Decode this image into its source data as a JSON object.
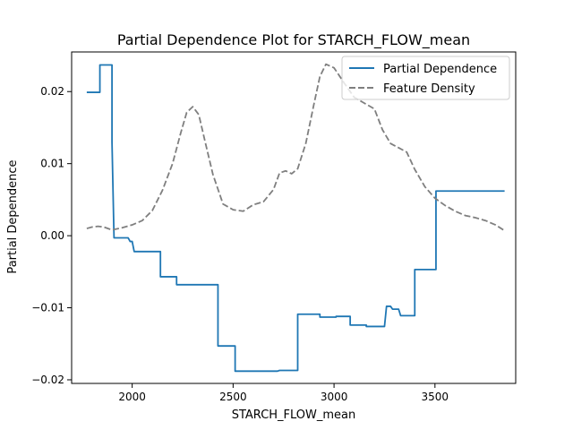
{
  "chart_data": {
    "type": "line",
    "title": "Partial Dependence Plot for STARCH_FLOW_mean",
    "xlabel": "STARCH_FLOW_mean",
    "ylabel": "Partial Dependence",
    "xlim": [
      1700,
      3900
    ],
    "ylim": [
      -0.0205,
      0.0255
    ],
    "xticks": [
      2000,
      2500,
      3000,
      3500
    ],
    "xtick_labels": [
      "2000",
      "2500",
      "3000",
      "3500"
    ],
    "yticks": [
      -0.02,
      -0.01,
      0.0,
      0.01,
      0.02
    ],
    "ytick_labels": [
      "−0.02",
      "−0.01",
      "0.00",
      "0.01",
      "0.02"
    ],
    "grid": false,
    "legend_position": "top-right",
    "series": [
      {
        "name": "Partial Dependence",
        "color": "#1f77b4",
        "style": "solid",
        "x": [
          1775,
          1840,
          1840,
          1900,
          1900,
          1910,
          1910,
          1980,
          1990,
          2000,
          2010,
          2140,
          2140,
          2220,
          2220,
          2425,
          2425,
          2510,
          2510,
          2720,
          2730,
          2820,
          2820,
          2930,
          2930,
          3010,
          3010,
          3080,
          3080,
          3160,
          3160,
          3250,
          3260,
          3280,
          3290,
          3320,
          3330,
          3400,
          3400,
          3505,
          3505,
          3845
        ],
        "y": [
          0.0199,
          0.0199,
          0.0237,
          0.0237,
          0.013,
          -0.0003,
          -0.0003,
          -0.0003,
          -0.0008,
          -0.0008,
          -0.0022,
          -0.0022,
          -0.0057,
          -0.0057,
          -0.0068,
          -0.0068,
          -0.0153,
          -0.0153,
          -0.0188,
          -0.0188,
          -0.0187,
          -0.0187,
          -0.0109,
          -0.0109,
          -0.0113,
          -0.0113,
          -0.0112,
          -0.0112,
          -0.0124,
          -0.0124,
          -0.0126,
          -0.0126,
          -0.0098,
          -0.0098,
          -0.0102,
          -0.0102,
          -0.0111,
          -0.0111,
          -0.0047,
          -0.0047,
          0.0062,
          0.0062
        ]
      },
      {
        "name": "Feature Density",
        "color": "#7f7f7f",
        "style": "dashed",
        "x": [
          1775,
          1800,
          1830,
          1860,
          1900,
          1950,
          2000,
          2050,
          2100,
          2150,
          2200,
          2240,
          2270,
          2300,
          2330,
          2360,
          2400,
          2450,
          2500,
          2550,
          2600,
          2650,
          2700,
          2730,
          2760,
          2790,
          2820,
          2860,
          2900,
          2930,
          2960,
          3000,
          3050,
          3100,
          3150,
          3200,
          3240,
          3280,
          3320,
          3360,
          3400,
          3450,
          3500,
          3550,
          3600,
          3650,
          3700,
          3750,
          3800,
          3845
        ],
        "y": [
          0.001,
          0.0012,
          0.0013,
          0.0012,
          0.0008,
          0.0011,
          0.0015,
          0.0021,
          0.0035,
          0.0063,
          0.01,
          0.0142,
          0.0171,
          0.0179,
          0.0168,
          0.0132,
          0.0085,
          0.0044,
          0.0036,
          0.0034,
          0.0043,
          0.0047,
          0.0064,
          0.0087,
          0.009,
          0.0086,
          0.0093,
          0.0128,
          0.0182,
          0.0221,
          0.0238,
          0.0233,
          0.0212,
          0.0192,
          0.0184,
          0.0176,
          0.0147,
          0.0128,
          0.0122,
          0.0116,
          0.0092,
          0.0068,
          0.0052,
          0.0042,
          0.0034,
          0.0028,
          0.0025,
          0.0021,
          0.0015,
          0.0007
        ]
      }
    ]
  }
}
